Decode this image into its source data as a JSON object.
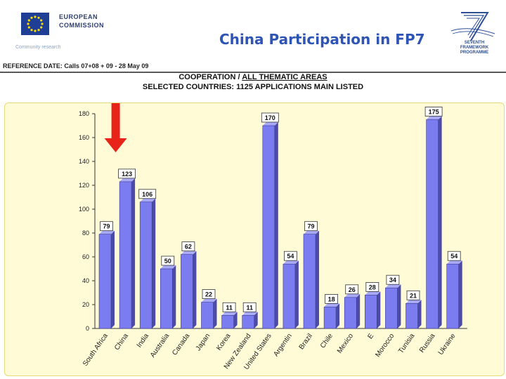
{
  "header": {
    "org_line1": "EUROPEAN",
    "org_line2": "COMMISSION",
    "org_sub": "Community research",
    "slide_title": "China Participation in FP7",
    "program_line1": "SEVENTH FRAMEWORK",
    "program_line2": "PROGRAMME"
  },
  "reference": "REFERENCE DATE:  Calls 07+08 + 09 - 28 May 09",
  "chart_heading": {
    "line1_prefix": "COOPERATION  /",
    "line1_link": "ALL THEMATIC AREAS",
    "line2": "SELECTED COUNTRIES: 1125 APPLICATIONS MAIN LISTED"
  },
  "colors": {
    "bar": "#7b7cf0",
    "bar_side": "#4c4ca8",
    "arrow": "#e8231a",
    "panel": "#fffbd7",
    "title": "#2f55b4"
  },
  "chart_data": {
    "type": "bar",
    "title": "COOPERATION / ALL THEMATIC AREAS",
    "subtitle": "SELECTED COUNTRIES: 1125 APPLICATIONS MAIN LISTED",
    "categories": [
      "South Africa",
      "China",
      "India",
      "Australia",
      "Canada",
      "Japan",
      "Korea",
      "New Zealand",
      "United States",
      "Argentina",
      "Brazil",
      "Chile",
      "Mexico",
      "Egypt",
      "Morocco",
      "Tunisia",
      "Russia",
      "Ukraine"
    ],
    "category_labels": [
      "South Africa",
      "China",
      "India",
      "Australia",
      "Canada",
      "Japan",
      "Korea",
      "New Zealand",
      "United States",
      "Argentin",
      "Brazil",
      "Chile",
      "Mexico",
      "E",
      "Morocco",
      "Tunisia",
      "Russia",
      "Ukraine"
    ],
    "values": [
      79,
      123,
      106,
      50,
      62,
      22,
      11,
      11,
      170,
      54,
      79,
      18,
      26,
      28,
      34,
      21,
      175,
      54
    ],
    "yticks": [
      0,
      20,
      40,
      60,
      80,
      100,
      120,
      140,
      160,
      180
    ],
    "ylim": [
      0,
      180
    ],
    "xlabel": "",
    "ylabel": "",
    "grid": false,
    "legend": "none",
    "highlight_category": "China"
  }
}
